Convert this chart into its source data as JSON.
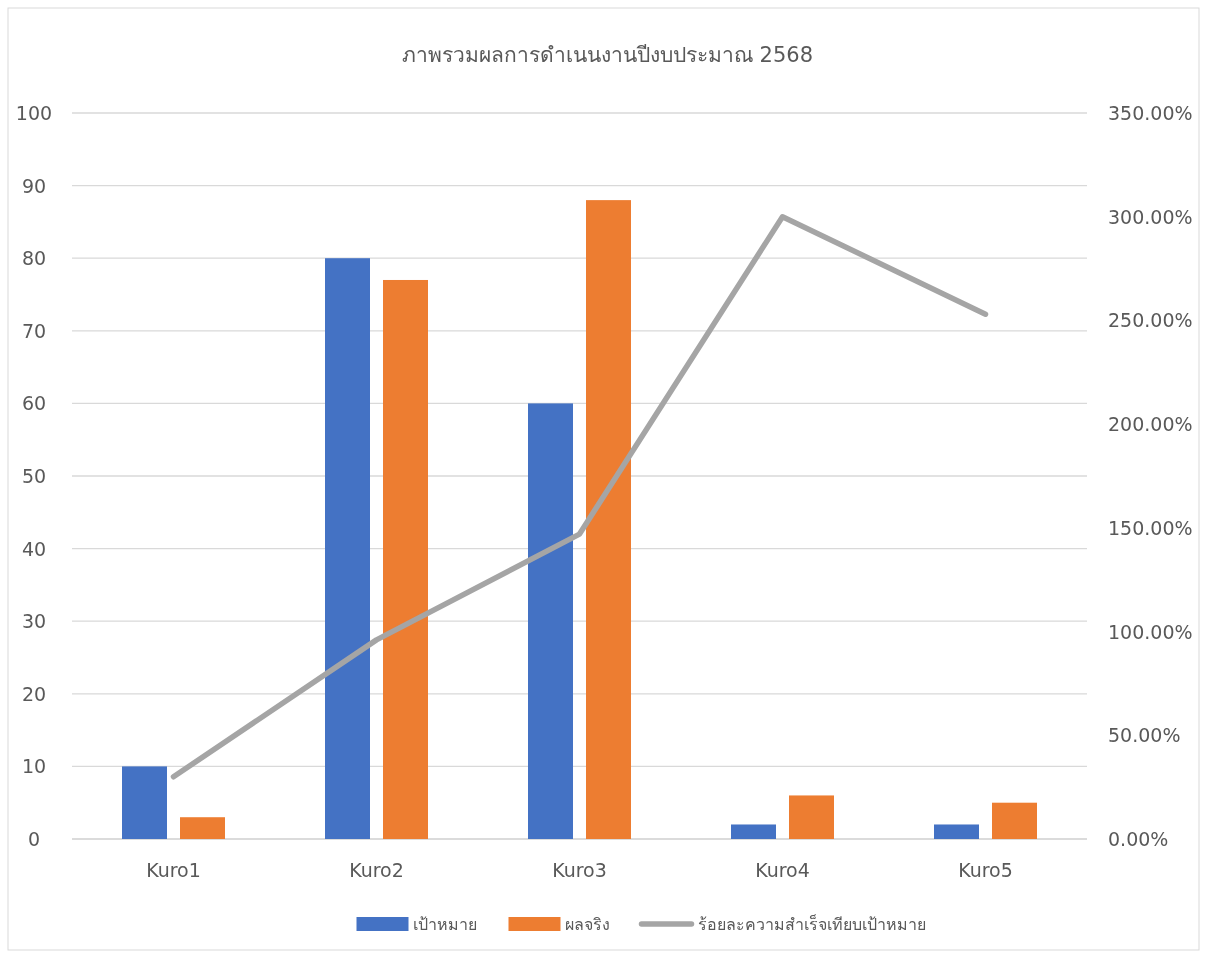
{
  "chart_data": {
    "type": "bar",
    "title": "ภาพรวมผลการดำเนนงานปีงบประมาณ 2568",
    "categories": [
      "Kuro1",
      "Kuro2",
      "Kuro3",
      "Kuro4",
      "Kuro5"
    ],
    "series": [
      {
        "name": "เป้าหมาย",
        "color": "#4472c4",
        "values": [
          10,
          80,
          60,
          2,
          2
        ]
      },
      {
        "name": "ผลจริง",
        "color": "#ed7d31",
        "values": [
          3,
          77,
          88,
          6,
          5
        ]
      },
      {
        "name": "ร้อยละความสำเร็จเทียบเป้าหมาย",
        "type": "line",
        "axis": "y2",
        "color": "#a5a5a5",
        "values": [
          30,
          96,
          147,
          300,
          253
        ]
      }
    ],
    "ylim": [
      0,
      100
    ],
    "yticks": [
      0,
      10,
      20,
      30,
      40,
      50,
      60,
      70,
      80,
      90,
      100
    ],
    "y2lim": [
      0,
      350
    ],
    "y2ticks": [
      {
        "value": 0,
        "label": "0.00%"
      },
      {
        "value": 50,
        "label": "50.00%"
      },
      {
        "value": 100,
        "label": "100.00%"
      },
      {
        "value": 150,
        "label": "150.00%"
      },
      {
        "value": 200,
        "label": "200.00%"
      },
      {
        "value": 250,
        "label": "250.00%"
      },
      {
        "value": 300,
        "label": "300.00%"
      },
      {
        "value": 350,
        "label": "350.00%"
      }
    ],
    "grid": "y",
    "legend": "bottom",
    "marker": "none",
    "line_style": "solid"
  }
}
